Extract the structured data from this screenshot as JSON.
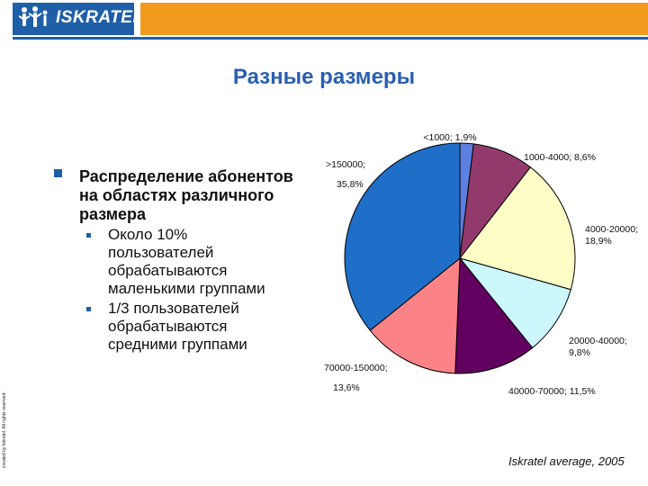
{
  "header": {
    "logo_text": "ISKRATEL",
    "colors": {
      "brand_blue": "#1f5fa8",
      "accent_orange": "#f29a1e"
    }
  },
  "slide": {
    "title": "Разные размеры",
    "copyright": "created by Iskratel. All rights reserved.",
    "source": "Iskratel average, 2005"
  },
  "bullets": {
    "main": "Распределение абонентов на областях различного размера",
    "sub": [
      "Около 10% пользователей обрабатываются маленькими группами",
      "1/3 пользователей обрабатываются средними группами"
    ]
  },
  "chart_data": {
    "type": "pie",
    "start_angle_deg": 0,
    "direction": "clockwise",
    "slices": [
      {
        "category": "<1000",
        "value": 1.9,
        "label": "<1000; 1,9%",
        "color": "#5c7fe0"
      },
      {
        "category": "1000-4000",
        "value": 8.6,
        "label": "1000-4000; 8,6%",
        "color": "#933a6c"
      },
      {
        "category": "4000-20000",
        "value": 18.9,
        "label": "4000-20000; 18,9%",
        "color": "#fdfdc6"
      },
      {
        "category": "20000-40000",
        "value": 9.8,
        "label": "20000-40000; 9,8%",
        "color": "#ccf7fd"
      },
      {
        "category": "40000-70000",
        "value": 11.5,
        "label": "40000-70000; 11,5%",
        "color": "#620060"
      },
      {
        "category": "70000-150000",
        "value": 13.6,
        "label": "70000-150000; 13,6%",
        "color": "#fb8387"
      },
      {
        "category": ">150000",
        "value": 35.8,
        "label": ">150000; 35,8%",
        "color": "#1f6ec7"
      }
    ]
  }
}
